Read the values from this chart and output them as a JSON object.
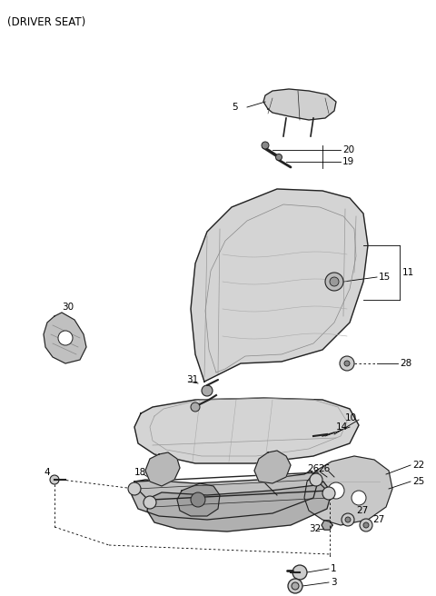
{
  "title": "(DRIVER SEAT)",
  "background_color": "#ffffff",
  "title_fontsize": 8.5,
  "fig_width": 4.8,
  "fig_height": 6.56,
  "dpi": 100
}
